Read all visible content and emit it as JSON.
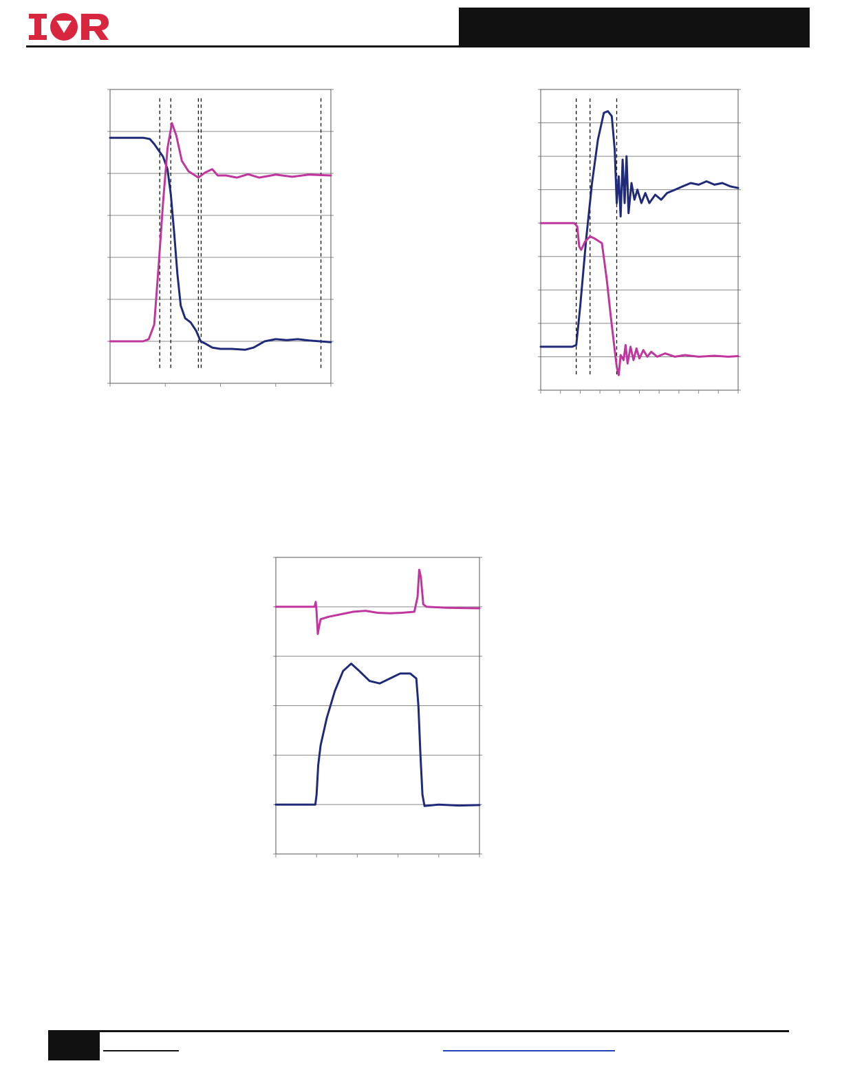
{
  "header": {
    "logo_text": "IOR",
    "colors": {
      "logo": "#d7263d",
      "bar": "#111111"
    }
  },
  "colors": {
    "blue": "#1f2a78",
    "magenta": "#c0369e",
    "grid": "#888888"
  },
  "chart_data": [
    {
      "type": "line",
      "xlim": [
        0,
        4
      ],
      "ylim": [
        0,
        7
      ],
      "x_ticks": [
        0,
        1,
        2,
        3,
        4
      ],
      "y_ticks": [
        0,
        1,
        2,
        3,
        4,
        5,
        6,
        7
      ],
      "grid": true,
      "series": [
        {
          "color": "#1f2a78",
          "points": [
            [
              0,
              5.85
            ],
            [
              0.6,
              5.85
            ],
            [
              0.72,
              5.82
            ],
            [
              0.8,
              5.7
            ],
            [
              0.88,
              5.55
            ],
            [
              0.96,
              5.4
            ],
            [
              1.04,
              5.1
            ],
            [
              1.1,
              4.5
            ],
            [
              1.16,
              3.6
            ],
            [
              1.22,
              2.6
            ],
            [
              1.28,
              1.85
            ],
            [
              1.36,
              1.55
            ],
            [
              1.46,
              1.45
            ],
            [
              1.56,
              1.25
            ],
            [
              1.64,
              1.0
            ],
            [
              1.72,
              0.95
            ],
            [
              1.85,
              0.85
            ],
            [
              2.0,
              0.82
            ],
            [
              2.2,
              0.82
            ],
            [
              2.45,
              0.8
            ],
            [
              2.6,
              0.85
            ],
            [
              2.8,
              1.0
            ],
            [
              3.0,
              1.05
            ],
            [
              3.2,
              1.03
            ],
            [
              3.4,
              1.05
            ],
            [
              3.6,
              1.02
            ],
            [
              3.8,
              1.0
            ],
            [
              4.0,
              0.98
            ]
          ]
        },
        {
          "color": "#c0369e",
          "points": [
            [
              0,
              1.0
            ],
            [
              0.6,
              1.0
            ],
            [
              0.7,
              1.05
            ],
            [
              0.8,
              1.4
            ],
            [
              0.88,
              2.8
            ],
            [
              0.96,
              4.3
            ],
            [
              1.04,
              5.6
            ],
            [
              1.12,
              6.2
            ],
            [
              1.2,
              5.9
            ],
            [
              1.3,
              5.3
            ],
            [
              1.42,
              5.05
            ],
            [
              1.6,
              4.9
            ],
            [
              1.72,
              5.02
            ],
            [
              1.85,
              5.1
            ],
            [
              1.95,
              4.95
            ],
            [
              2.1,
              4.95
            ],
            [
              2.3,
              4.9
            ],
            [
              2.5,
              4.98
            ],
            [
              2.7,
              4.9
            ],
            [
              3.0,
              4.97
            ],
            [
              3.3,
              4.92
            ],
            [
              3.6,
              4.97
            ],
            [
              4.0,
              4.95
            ]
          ]
        }
      ],
      "markers": {
        "dashed_x": [
          0.9,
          1.1,
          1.6,
          1.65,
          3.82
        ]
      }
    },
    {
      "type": "line",
      "xlim": [
        0,
        10
      ],
      "ylim": [
        0,
        9
      ],
      "x_ticks": [
        0,
        1,
        2,
        3,
        4,
        5,
        6,
        7,
        8,
        9,
        10
      ],
      "y_ticks": [
        0,
        1,
        2,
        3,
        4,
        5,
        6,
        7,
        8,
        9
      ],
      "grid": true,
      "series": [
        {
          "color": "#1f2a78",
          "points": [
            [
              0,
              1.3
            ],
            [
              1.6,
              1.3
            ],
            [
              1.8,
              1.35
            ],
            [
              2.0,
              2.5
            ],
            [
              2.3,
              4.5
            ],
            [
              2.6,
              6.2
            ],
            [
              2.9,
              7.5
            ],
            [
              3.2,
              8.3
            ],
            [
              3.4,
              8.35
            ],
            [
              3.6,
              8.2
            ],
            [
              3.75,
              7.2
            ],
            [
              3.85,
              5.6
            ],
            [
              3.95,
              6.4
            ],
            [
              4.05,
              5.2
            ],
            [
              4.15,
              6.9
            ],
            [
              4.25,
              5.6
            ],
            [
              4.35,
              7.0
            ],
            [
              4.45,
              5.3
            ],
            [
              4.6,
              6.2
            ],
            [
              4.75,
              5.7
            ],
            [
              4.9,
              6.0
            ],
            [
              5.1,
              5.6
            ],
            [
              5.3,
              5.9
            ],
            [
              5.5,
              5.6
            ],
            [
              5.8,
              5.85
            ],
            [
              6.1,
              5.7
            ],
            [
              6.4,
              5.9
            ],
            [
              6.8,
              6.0
            ],
            [
              7.2,
              6.1
            ],
            [
              7.6,
              6.2
            ],
            [
              8.0,
              6.15
            ],
            [
              8.4,
              6.25
            ],
            [
              8.8,
              6.15
            ],
            [
              9.2,
              6.2
            ],
            [
              9.6,
              6.1
            ],
            [
              10,
              6.05
            ]
          ]
        },
        {
          "color": "#c0369e",
          "points": [
            [
              0,
              5.0
            ],
            [
              1.7,
              5.0
            ],
            [
              1.85,
              4.9
            ],
            [
              1.95,
              4.3
            ],
            [
              2.05,
              4.2
            ],
            [
              2.25,
              4.45
            ],
            [
              2.5,
              4.6
            ],
            [
              2.7,
              4.55
            ],
            [
              3.1,
              4.4
            ],
            [
              3.35,
              3.3
            ],
            [
              3.55,
              2.2
            ],
            [
              3.75,
              1.2
            ],
            [
              3.85,
              0.7
            ],
            [
              3.95,
              0.45
            ],
            [
              4.05,
              1.05
            ],
            [
              4.2,
              0.9
            ],
            [
              4.3,
              1.35
            ],
            [
              4.4,
              0.8
            ],
            [
              4.55,
              1.3
            ],
            [
              4.7,
              0.9
            ],
            [
              4.85,
              1.25
            ],
            [
              5.0,
              0.95
            ],
            [
              5.2,
              1.2
            ],
            [
              5.4,
              1.0
            ],
            [
              5.6,
              1.15
            ],
            [
              5.9,
              1.0
            ],
            [
              6.3,
              1.1
            ],
            [
              6.8,
              1.0
            ],
            [
              7.3,
              1.05
            ],
            [
              8.0,
              1.0
            ],
            [
              8.8,
              1.03
            ],
            [
              9.5,
              1.0
            ],
            [
              10,
              1.02
            ]
          ]
        }
      ],
      "markers": {
        "dashed_x": [
          1.8,
          2.5,
          3.85
        ]
      }
    },
    {
      "type": "line",
      "xlim": [
        0,
        5
      ],
      "ylim": [
        0,
        6
      ],
      "x_ticks": [
        0,
        1,
        2,
        3,
        4,
        5
      ],
      "y_ticks": [
        0,
        1,
        2,
        3,
        4,
        5,
        6
      ],
      "grid": true,
      "series": [
        {
          "color": "#c0369e",
          "points": [
            [
              0,
              5.0
            ],
            [
              0.95,
              5.0
            ],
            [
              0.98,
              5.1
            ],
            [
              1.0,
              4.9
            ],
            [
              1.03,
              4.45
            ],
            [
              1.06,
              4.6
            ],
            [
              1.1,
              4.75
            ],
            [
              1.3,
              4.8
            ],
            [
              1.6,
              4.85
            ],
            [
              1.9,
              4.9
            ],
            [
              2.2,
              4.92
            ],
            [
              2.5,
              4.88
            ],
            [
              2.8,
              4.87
            ],
            [
              3.1,
              4.88
            ],
            [
              3.4,
              4.9
            ],
            [
              3.48,
              5.2
            ],
            [
              3.52,
              5.75
            ],
            [
              3.56,
              5.6
            ],
            [
              3.62,
              5.05
            ],
            [
              3.7,
              5.0
            ],
            [
              4.2,
              4.98
            ],
            [
              5.0,
              4.97
            ]
          ]
        },
        {
          "color": "#1f2a78",
          "points": [
            [
              0,
              1.0
            ],
            [
              0.97,
              1.0
            ],
            [
              1.0,
              1.2
            ],
            [
              1.04,
              1.8
            ],
            [
              1.1,
              2.2
            ],
            [
              1.25,
              2.75
            ],
            [
              1.45,
              3.3
            ],
            [
              1.65,
              3.7
            ],
            [
              1.85,
              3.85
            ],
            [
              2.05,
              3.7
            ],
            [
              2.3,
              3.5
            ],
            [
              2.55,
              3.45
            ],
            [
              2.8,
              3.55
            ],
            [
              3.05,
              3.65
            ],
            [
              3.3,
              3.65
            ],
            [
              3.45,
              3.55
            ],
            [
              3.5,
              3.0
            ],
            [
              3.55,
              2.0
            ],
            [
              3.6,
              1.2
            ],
            [
              3.65,
              0.97
            ],
            [
              4.0,
              1.0
            ],
            [
              4.5,
              0.98
            ],
            [
              5.0,
              0.99
            ]
          ]
        }
      ],
      "markers": {
        "dashed_x": []
      }
    }
  ]
}
